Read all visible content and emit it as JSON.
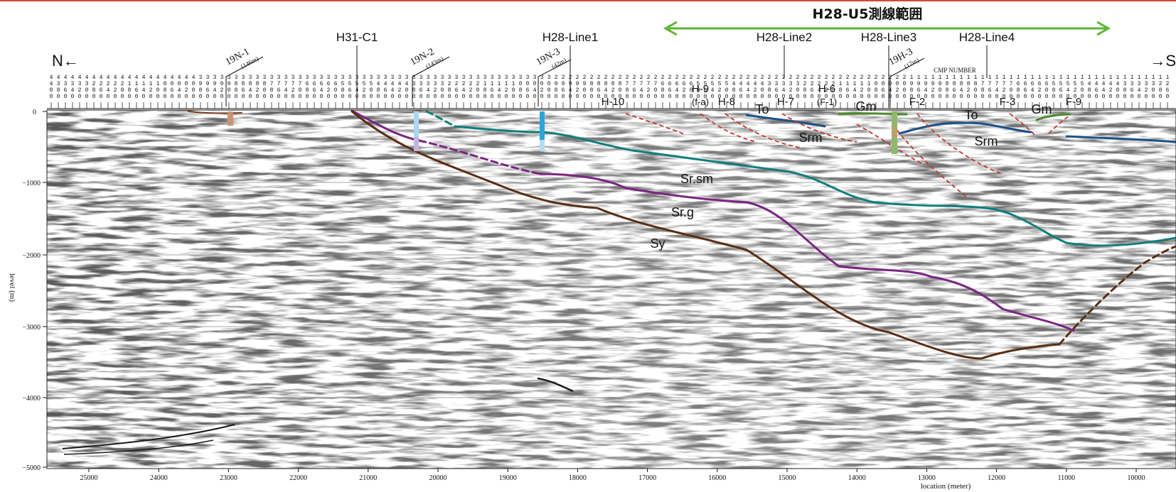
{
  "range_title": "H28-U5測線範囲",
  "direction": {
    "north": "N←",
    "south": "→S"
  },
  "cmp_caption": "CMP NUMBER",
  "survey_lines": [
    "H31-C1",
    "H28-Line1",
    "H28-Line2",
    "H28-Line3",
    "H28-Line4"
  ],
  "wells": [
    {
      "name": "19N-1",
      "depth": "(146m)"
    },
    {
      "name": "19N-2",
      "depth": "(143m)"
    },
    {
      "name": "19N-3",
      "depth": "(42m)"
    },
    {
      "name": "19H-3",
      "depth": "(17m)"
    }
  ],
  "intersection_labels": [
    "H-10",
    "H-9",
    "(f-a)",
    "H-8",
    "H-7",
    "H-6",
    "(F-1)",
    "F-2",
    "F-3",
    "F-9"
  ],
  "formation_labels": [
    "To",
    "To",
    "Gm",
    "Gm",
    "Srm",
    "Srm",
    "Sr.sm",
    "Sr.g",
    "Sy"
  ],
  "axes": {
    "ylabel": "level (m)",
    "xlabel": "location (meter)",
    "y_ticks": [
      "0",
      "−1000",
      "−2000",
      "−3000",
      "−4000",
      "−5000"
    ],
    "x_ticks": [
      "25000",
      "24000",
      "23000",
      "22000",
      "21000",
      "20000",
      "19000",
      "18000",
      "17000",
      "16000",
      "15000",
      "14000",
      "13000",
      "12000",
      "11000",
      "10000"
    ]
  },
  "colors": {
    "range_arrow": "#5cb531",
    "title_rule": "#d9463a",
    "horizon_srm": "#0f7e7d",
    "horizon_srsm": "#7b2483",
    "horizon_srg": "#5a2d12",
    "horizon_to": "#1c4f8a",
    "horizon_gm": "#4a8a2a",
    "fault": "#c0392b"
  }
}
